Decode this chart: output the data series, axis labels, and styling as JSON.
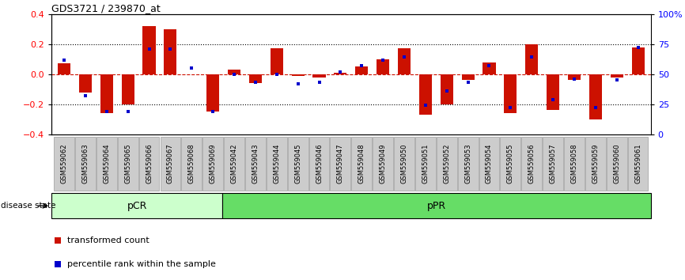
{
  "title": "GDS3721 / 239870_at",
  "samples": [
    "GSM559062",
    "GSM559063",
    "GSM559064",
    "GSM559065",
    "GSM559066",
    "GSM559067",
    "GSM559068",
    "GSM559069",
    "GSM559042",
    "GSM559043",
    "GSM559044",
    "GSM559045",
    "GSM559046",
    "GSM559047",
    "GSM559048",
    "GSM559049",
    "GSM559050",
    "GSM559051",
    "GSM559052",
    "GSM559053",
    "GSM559054",
    "GSM559055",
    "GSM559056",
    "GSM559057",
    "GSM559058",
    "GSM559059",
    "GSM559060",
    "GSM559061"
  ],
  "transformed_count": [
    0.07,
    -0.12,
    -0.26,
    -0.2,
    0.32,
    0.3,
    0.0,
    -0.25,
    0.03,
    -0.06,
    0.17,
    -0.01,
    -0.02,
    0.01,
    0.05,
    0.1,
    0.17,
    -0.27,
    -0.2,
    -0.04,
    0.08,
    -0.26,
    0.2,
    -0.24,
    -0.04,
    -0.3,
    -0.02,
    0.18
  ],
  "percentile_rank": [
    0.62,
    0.32,
    0.19,
    0.19,
    0.71,
    0.71,
    0.55,
    0.19,
    0.5,
    0.43,
    0.5,
    0.42,
    0.43,
    0.52,
    0.57,
    0.62,
    0.64,
    0.24,
    0.36,
    0.43,
    0.57,
    0.22,
    0.64,
    0.29,
    0.46,
    0.22,
    0.45,
    0.72
  ],
  "group_labels": [
    "pCR",
    "pPR"
  ],
  "group_boundaries": [
    0,
    8,
    28
  ],
  "group_colors": [
    "#ccffcc",
    "#66dd66"
  ],
  "bar_color": "#cc1100",
  "marker_color": "#0000cc",
  "ylim": [
    -0.4,
    0.4
  ],
  "right_ylim": [
    0,
    100
  ],
  "right_yticks": [
    0,
    25,
    50,
    75,
    100
  ],
  "right_yticklabels": [
    "0",
    "25",
    "50",
    "75",
    "100%"
  ],
  "left_yticks": [
    -0.4,
    -0.2,
    0.0,
    0.2,
    0.4
  ],
  "dotted_hlines": [
    -0.2,
    0.2
  ],
  "bar_width": 0.6,
  "tick_bg_color": "#cccccc"
}
